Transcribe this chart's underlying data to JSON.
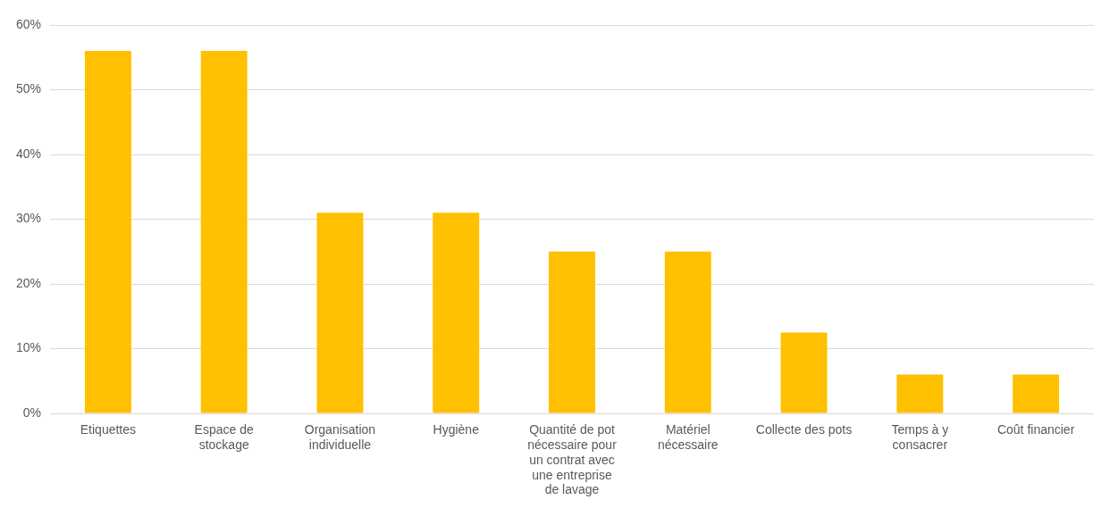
{
  "chart_data": {
    "type": "bar",
    "categories": [
      "Etiquettes",
      "Espace de stockage",
      "Organisation individuelle",
      "Hygiène",
      "Quantité de pot nécessaire pour un contrat avec une entreprise de lavage",
      "Matériel nécessaire",
      "Collecte des pots",
      "Temps à y consacrer",
      "Coût financier"
    ],
    "values": [
      56,
      56,
      31,
      31,
      25,
      25,
      12.5,
      6,
      6
    ],
    "color": "#ffc000",
    "ylim": [
      0,
      60
    ],
    "yticks": [
      {
        "value": 0,
        "label": "0%"
      },
      {
        "value": 10,
        "label": "10%"
      },
      {
        "value": 20,
        "label": "20%"
      },
      {
        "value": 30,
        "label": "30%"
      },
      {
        "value": 40,
        "label": "40%"
      },
      {
        "value": 50,
        "label": "50%"
      },
      {
        "value": 60,
        "label": "60%"
      }
    ],
    "grid": "y",
    "legend": false
  }
}
